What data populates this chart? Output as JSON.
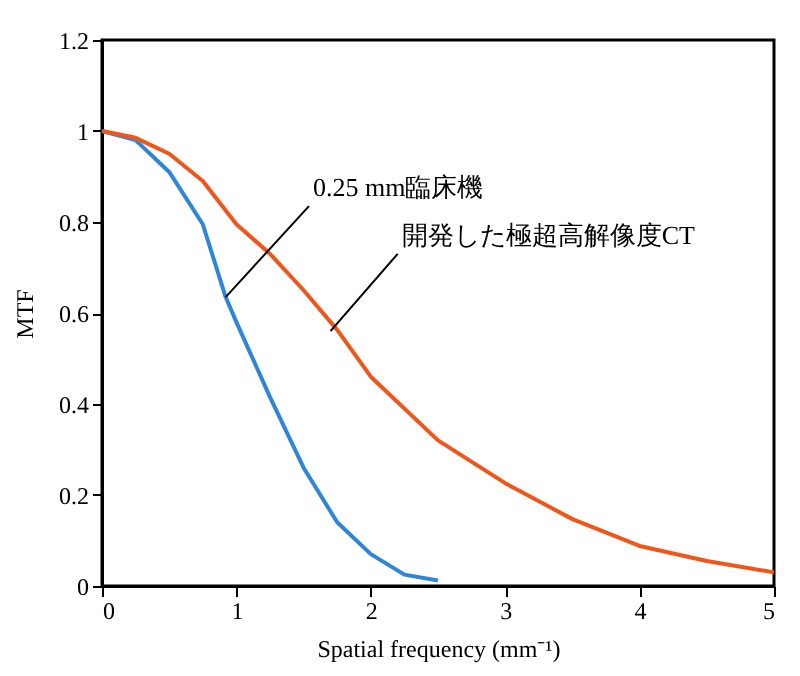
{
  "chart_data": {
    "type": "line",
    "xlabel": "Spatial frequency (mm⁻¹)",
    "ylabel": "MTF",
    "xlim": [
      0,
      5
    ],
    "xticks": [
      0,
      1,
      2,
      3,
      4,
      5
    ],
    "ylim": [
      0,
      1.2
    ],
    "yticks": [
      0,
      0.2,
      0.4,
      0.6,
      0.8,
      1,
      1.2
    ],
    "grid": false,
    "marker": "none",
    "line_style": "solid",
    "series": [
      {
        "color": "#2f86d8",
        "x": [
          0,
          0.25,
          0.5,
          0.75,
          0.92,
          1.0,
          1.25,
          1.5,
          1.75,
          2.0,
          2.25,
          2.5
        ],
        "values": [
          1,
          0.98,
          0.91,
          0.795,
          0.635,
          0.58,
          0.415,
          0.26,
          0.14,
          0.07,
          0.025,
          0.012
        ]
      },
      {
        "color": "#f0561a",
        "x": [
          0,
          0.25,
          0.5,
          0.75,
          1.0,
          1.25,
          1.5,
          1.75,
          2.0,
          2.5,
          3.0,
          3.5,
          4.0,
          4.5,
          5.0
        ],
        "values": [
          1,
          0.985,
          0.95,
          0.89,
          0.795,
          0.73,
          0.65,
          0.563,
          0.46,
          0.32,
          0.226,
          0.147,
          0.088,
          0.055,
          0.03
        ]
      }
    ],
    "annotations": [
      {
        "text": "0.25 mm臨床機",
        "x": 0.92,
        "y": 0.635
      },
      {
        "text": "開発した極超高解像度CT",
        "x": 1.7,
        "y": 0.56
      }
    ]
  }
}
